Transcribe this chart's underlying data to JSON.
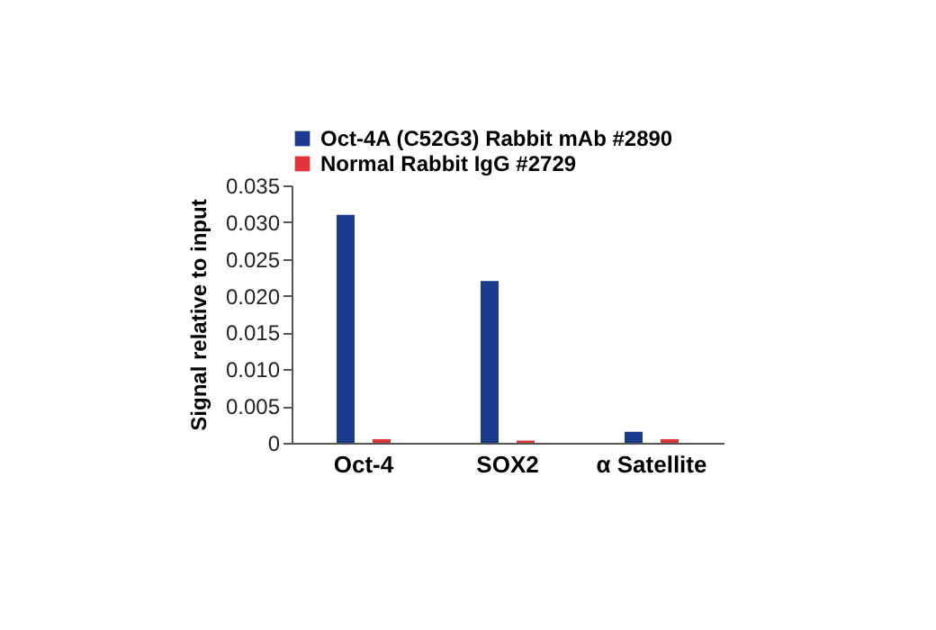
{
  "chart_data": {
    "type": "bar",
    "ylabel": "Signal relative to input",
    "categories": [
      "Oct-4",
      "SOX2",
      "α Satellite"
    ],
    "series": [
      {
        "name": "Oct-4A (C52G3) Rabbit mAb #2890",
        "color": "#1b3a8c",
        "values": [
          0.031,
          0.022,
          0.0015
        ]
      },
      {
        "name": "Normal Rabbit IgG #2729",
        "color": "#e0363a",
        "values": [
          0.0005,
          0.0003,
          0.0005
        ]
      }
    ],
    "ylim": [
      0,
      0.035
    ],
    "yticks": [
      {
        "value": 0,
        "label": "0"
      },
      {
        "value": 0.005,
        "label": "0.005"
      },
      {
        "value": 0.01,
        "label": "0.010"
      },
      {
        "value": 0.015,
        "label": "0.015"
      },
      {
        "value": 0.02,
        "label": "0.020"
      },
      {
        "value": 0.025,
        "label": "0.025"
      },
      {
        "value": 0.03,
        "label": "0.030"
      },
      {
        "value": 0.035,
        "label": "0.035"
      }
    ],
    "grid": false,
    "legend": "top left"
  }
}
